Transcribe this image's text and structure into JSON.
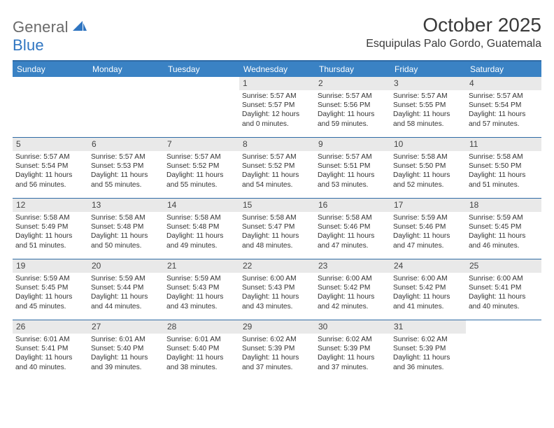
{
  "logo": {
    "general": "General",
    "blue": "Blue"
  },
  "title": "October 2025",
  "location": "Esquipulas Palo Gordo, Guatemala",
  "colors": {
    "header_bg": "#3a82c4",
    "header_border": "#2f6ba5",
    "daynum_bg": "#e9e9e9",
    "text": "#333333",
    "title_text": "#3a3a3a",
    "logo_gray": "#6a6a6a",
    "logo_blue": "#2f75c1"
  },
  "weekdays": [
    "Sunday",
    "Monday",
    "Tuesday",
    "Wednesday",
    "Thursday",
    "Friday",
    "Saturday"
  ],
  "labels": {
    "sunrise": "Sunrise:",
    "sunset": "Sunset:",
    "daylight": "Daylight:"
  },
  "days": [
    null,
    null,
    null,
    {
      "n": "1",
      "sunrise": "5:57 AM",
      "sunset": "5:57 PM",
      "daylight": "12 hours and 0 minutes."
    },
    {
      "n": "2",
      "sunrise": "5:57 AM",
      "sunset": "5:56 PM",
      "daylight": "11 hours and 59 minutes."
    },
    {
      "n": "3",
      "sunrise": "5:57 AM",
      "sunset": "5:55 PM",
      "daylight": "11 hours and 58 minutes."
    },
    {
      "n": "4",
      "sunrise": "5:57 AM",
      "sunset": "5:54 PM",
      "daylight": "11 hours and 57 minutes."
    },
    {
      "n": "5",
      "sunrise": "5:57 AM",
      "sunset": "5:54 PM",
      "daylight": "11 hours and 56 minutes."
    },
    {
      "n": "6",
      "sunrise": "5:57 AM",
      "sunset": "5:53 PM",
      "daylight": "11 hours and 55 minutes."
    },
    {
      "n": "7",
      "sunrise": "5:57 AM",
      "sunset": "5:52 PM",
      "daylight": "11 hours and 55 minutes."
    },
    {
      "n": "8",
      "sunrise": "5:57 AM",
      "sunset": "5:52 PM",
      "daylight": "11 hours and 54 minutes."
    },
    {
      "n": "9",
      "sunrise": "5:57 AM",
      "sunset": "5:51 PM",
      "daylight": "11 hours and 53 minutes."
    },
    {
      "n": "10",
      "sunrise": "5:58 AM",
      "sunset": "5:50 PM",
      "daylight": "11 hours and 52 minutes."
    },
    {
      "n": "11",
      "sunrise": "5:58 AM",
      "sunset": "5:50 PM",
      "daylight": "11 hours and 51 minutes."
    },
    {
      "n": "12",
      "sunrise": "5:58 AM",
      "sunset": "5:49 PM",
      "daylight": "11 hours and 51 minutes."
    },
    {
      "n": "13",
      "sunrise": "5:58 AM",
      "sunset": "5:48 PM",
      "daylight": "11 hours and 50 minutes."
    },
    {
      "n": "14",
      "sunrise": "5:58 AM",
      "sunset": "5:48 PM",
      "daylight": "11 hours and 49 minutes."
    },
    {
      "n": "15",
      "sunrise": "5:58 AM",
      "sunset": "5:47 PM",
      "daylight": "11 hours and 48 minutes."
    },
    {
      "n": "16",
      "sunrise": "5:58 AM",
      "sunset": "5:46 PM",
      "daylight": "11 hours and 47 minutes."
    },
    {
      "n": "17",
      "sunrise": "5:59 AM",
      "sunset": "5:46 PM",
      "daylight": "11 hours and 47 minutes."
    },
    {
      "n": "18",
      "sunrise": "5:59 AM",
      "sunset": "5:45 PM",
      "daylight": "11 hours and 46 minutes."
    },
    {
      "n": "19",
      "sunrise": "5:59 AM",
      "sunset": "5:45 PM",
      "daylight": "11 hours and 45 minutes."
    },
    {
      "n": "20",
      "sunrise": "5:59 AM",
      "sunset": "5:44 PM",
      "daylight": "11 hours and 44 minutes."
    },
    {
      "n": "21",
      "sunrise": "5:59 AM",
      "sunset": "5:43 PM",
      "daylight": "11 hours and 43 minutes."
    },
    {
      "n": "22",
      "sunrise": "6:00 AM",
      "sunset": "5:43 PM",
      "daylight": "11 hours and 43 minutes."
    },
    {
      "n": "23",
      "sunrise": "6:00 AM",
      "sunset": "5:42 PM",
      "daylight": "11 hours and 42 minutes."
    },
    {
      "n": "24",
      "sunrise": "6:00 AM",
      "sunset": "5:42 PM",
      "daylight": "11 hours and 41 minutes."
    },
    {
      "n": "25",
      "sunrise": "6:00 AM",
      "sunset": "5:41 PM",
      "daylight": "11 hours and 40 minutes."
    },
    {
      "n": "26",
      "sunrise": "6:01 AM",
      "sunset": "5:41 PM",
      "daylight": "11 hours and 40 minutes."
    },
    {
      "n": "27",
      "sunrise": "6:01 AM",
      "sunset": "5:40 PM",
      "daylight": "11 hours and 39 minutes."
    },
    {
      "n": "28",
      "sunrise": "6:01 AM",
      "sunset": "5:40 PM",
      "daylight": "11 hours and 38 minutes."
    },
    {
      "n": "29",
      "sunrise": "6:02 AM",
      "sunset": "5:39 PM",
      "daylight": "11 hours and 37 minutes."
    },
    {
      "n": "30",
      "sunrise": "6:02 AM",
      "sunset": "5:39 PM",
      "daylight": "11 hours and 37 minutes."
    },
    {
      "n": "31",
      "sunrise": "6:02 AM",
      "sunset": "5:39 PM",
      "daylight": "11 hours and 36 minutes."
    },
    null
  ]
}
